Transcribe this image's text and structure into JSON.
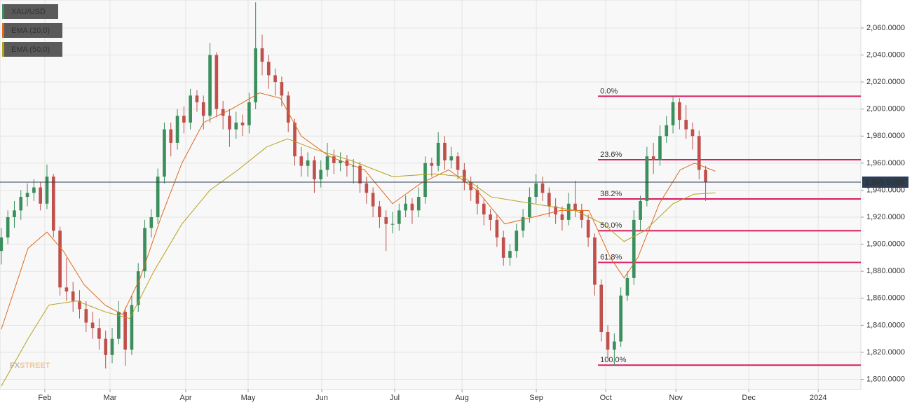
{
  "chart_data": {
    "type": "candlestick",
    "watermark": [
      "FX",
      "STREET"
    ],
    "xlim": [
      -0.2,
      131.8
    ],
    "xticks": [
      {
        "value": 6.67,
        "label": "Feb"
      },
      {
        "value": 16.67,
        "label": "Mar"
      },
      {
        "value": 28.28,
        "label": "Apr"
      },
      {
        "value": 37.85,
        "label": "May"
      },
      {
        "value": 49.14,
        "label": "Jun"
      },
      {
        "value": 60.32,
        "label": "Jul"
      },
      {
        "value": 70.65,
        "label": "Aug"
      },
      {
        "value": 82.04,
        "label": "Sep"
      },
      {
        "value": 92.69,
        "label": "Oct"
      },
      {
        "value": 103.44,
        "label": "Nov"
      },
      {
        "value": 114.62,
        "label": "Dec"
      },
      {
        "value": 125.27,
        "label": "2024"
      }
    ],
    "ylim": [
      1792.5,
      2080.7
    ],
    "yticks": [
      {
        "value": 1800,
        "label": "1,800.0000"
      },
      {
        "value": 1820,
        "label": "1,820.0000"
      },
      {
        "value": 1840,
        "label": "1,840.0000"
      },
      {
        "value": 1860,
        "label": "1,860.0000"
      },
      {
        "value": 1880,
        "label": "1,880.0000"
      },
      {
        "value": 1900,
        "label": "1,900.0000"
      },
      {
        "value": 1920,
        "label": "1,920.0000"
      },
      {
        "value": 1940,
        "label": "1,940.0000"
      },
      {
        "value": 1960,
        "label": "1,960.0000"
      },
      {
        "value": 1980,
        "label": "1,980.0000"
      },
      {
        "value": 2000,
        "label": "2,000.0000"
      },
      {
        "value": 2020,
        "label": "2,020.0000"
      },
      {
        "value": 2040,
        "label": "2,040.0000"
      },
      {
        "value": 2060,
        "label": "2,060.0000"
      }
    ],
    "grid": true,
    "last_price": {
      "value": 1945.93,
      "label": "1,945.9300"
    },
    "fib_start": 91.5,
    "fib_color": "#d81b60",
    "fib_levels": [
      {
        "value": 2009.5,
        "label": "0.0%"
      },
      {
        "value": 1962.5,
        "label": "23.6%"
      },
      {
        "value": 1933.5,
        "label": "38.2%"
      },
      {
        "value": 1910,
        "label": "50.0%"
      },
      {
        "value": 1886.5,
        "label": "61.8%"
      },
      {
        "value": 1810.5,
        "label": "100.0%"
      }
    ],
    "series": [
      {
        "name": "XAU/USD",
        "color": "#3a8f5c",
        "down_color": "#c0504d",
        "x": [
          0,
          1,
          2,
          3,
          4,
          5,
          6,
          7,
          8,
          9,
          10,
          11,
          12,
          13,
          14,
          15,
          16,
          17,
          18,
          19,
          20,
          21,
          22,
          23,
          24,
          25,
          26,
          27,
          28,
          29,
          30,
          31,
          32,
          33,
          34,
          35,
          36,
          37,
          38,
          39,
          40,
          41,
          42,
          43,
          44,
          45,
          46,
          47,
          48,
          49,
          50,
          51,
          52,
          53,
          54,
          55,
          56,
          57,
          58,
          59,
          60,
          61,
          62,
          63,
          64,
          65,
          66,
          67,
          68,
          69,
          70,
          71,
          72,
          73,
          74,
          75,
          76,
          77,
          78,
          79,
          80,
          81,
          82,
          83,
          84,
          85,
          86,
          87,
          88,
          89,
          90,
          91,
          92,
          93,
          94,
          95,
          96,
          97,
          98,
          99,
          100,
          101,
          102,
          103,
          104,
          105,
          106,
          107,
          108
        ],
        "ohlc": [
          [
            1895,
            1912,
            1885,
            1905
          ],
          [
            1905,
            1925,
            1900,
            1920
          ],
          [
            1920,
            1932,
            1912,
            1925
          ],
          [
            1925,
            1940,
            1918,
            1935
          ],
          [
            1935,
            1945,
            1928,
            1938
          ],
          [
            1938,
            1948,
            1932,
            1942
          ],
          [
            1942,
            1946,
            1925,
            1930
          ],
          [
            1930,
            1959,
            1926,
            1950
          ],
          [
            1950,
            1952,
            1905,
            1910
          ],
          [
            1910,
            1913,
            1862,
            1868
          ],
          [
            1868,
            1890,
            1858,
            1865
          ],
          [
            1865,
            1872,
            1850,
            1858
          ],
          [
            1858,
            1866,
            1845,
            1852
          ],
          [
            1852,
            1858,
            1835,
            1842
          ],
          [
            1842,
            1850,
            1830,
            1838
          ],
          [
            1838,
            1845,
            1822,
            1830
          ],
          [
            1830,
            1836,
            1808,
            1818
          ],
          [
            1818,
            1838,
            1812,
            1830
          ],
          [
            1830,
            1858,
            1826,
            1850
          ],
          [
            1850,
            1853,
            1810,
            1822
          ],
          [
            1822,
            1862,
            1818,
            1855
          ],
          [
            1855,
            1886,
            1850,
            1880
          ],
          [
            1880,
            1918,
            1875,
            1912
          ],
          [
            1912,
            1926,
            1905,
            1920
          ],
          [
            1920,
            1956,
            1915,
            1950
          ],
          [
            1950,
            1990,
            1945,
            1985
          ],
          [
            1985,
            1990,
            1965,
            1975
          ],
          [
            1975,
            2000,
            1970,
            1995
          ],
          [
            1995,
            2002,
            1982,
            1990
          ],
          [
            1990,
            2015,
            1985,
            2010
          ],
          [
            2010,
            2014,
            1998,
            2005
          ],
          [
            2005,
            2010,
            1985,
            1995
          ],
          [
            1995,
            2049,
            1990,
            2040
          ],
          [
            2040,
            2042,
            1994,
            2000
          ],
          [
            2000,
            2006,
            1985,
            1995
          ],
          [
            1995,
            2000,
            1972,
            1985
          ],
          [
            1985,
            1998,
            1978,
            1990
          ],
          [
            1990,
            1996,
            1980,
            1988
          ],
          [
            1988,
            2012,
            1982,
            2005
          ],
          [
            2005,
            2079,
            2000,
            2045
          ],
          [
            2045,
            2055,
            2025,
            2035
          ],
          [
            2035,
            2040,
            2015,
            2025
          ],
          [
            2025,
            2030,
            2010,
            2020
          ],
          [
            2020,
            2024,
            2002,
            2010
          ],
          [
            2010,
            2013,
            1983,
            1990
          ],
          [
            1990,
            1993,
            1958,
            1965
          ],
          [
            1965,
            1972,
            1950,
            1958
          ],
          [
            1958,
            1968,
            1950,
            1962
          ],
          [
            1962,
            1965,
            1938,
            1948
          ],
          [
            1948,
            1962,
            1942,
            1955
          ],
          [
            1955,
            1975,
            1950,
            1965
          ],
          [
            1965,
            1970,
            1952,
            1960
          ],
          [
            1960,
            1968,
            1954,
            1962
          ],
          [
            1962,
            1966,
            1950,
            1958
          ],
          [
            1958,
            1963,
            1945,
            1958
          ],
          [
            1958,
            1961,
            1938,
            1945
          ],
          [
            1945,
            1950,
            1930,
            1938
          ],
          [
            1938,
            1942,
            1920,
            1928
          ],
          [
            1928,
            1932,
            1912,
            1920
          ],
          [
            1920,
            1925,
            1895,
            1915
          ],
          [
            1915,
            1924,
            1908,
            1915
          ],
          [
            1915,
            1930,
            1910,
            1925
          ],
          [
            1925,
            1936,
            1920,
            1930
          ],
          [
            1930,
            1934,
            1915,
            1925
          ],
          [
            1925,
            1942,
            1920,
            1935
          ],
          [
            1935,
            1965,
            1930,
            1960
          ],
          [
            1960,
            1964,
            1950,
            1958
          ],
          [
            1958,
            1983,
            1954,
            1975
          ],
          [
            1975,
            1980,
            1955,
            1962
          ],
          [
            1962,
            1972,
            1956,
            1965
          ],
          [
            1965,
            1968,
            1948,
            1955
          ],
          [
            1955,
            1960,
            1940,
            1946
          ],
          [
            1946,
            1950,
            1932,
            1940
          ],
          [
            1940,
            1944,
            1922,
            1930
          ],
          [
            1930,
            1934,
            1914,
            1922
          ],
          [
            1922,
            1926,
            1910,
            1918
          ],
          [
            1918,
            1922,
            1898,
            1905
          ],
          [
            1905,
            1910,
            1884,
            1890
          ],
          [
            1890,
            1900,
            1884,
            1895
          ],
          [
            1895,
            1915,
            1890,
            1910
          ],
          [
            1910,
            1926,
            1905,
            1920
          ],
          [
            1920,
            1942,
            1916,
            1935
          ],
          [
            1935,
            1952,
            1930,
            1945
          ],
          [
            1945,
            1950,
            1932,
            1938
          ],
          [
            1938,
            1942,
            1920,
            1928
          ],
          [
            1928,
            1934,
            1915,
            1922
          ],
          [
            1922,
            1928,
            1910,
            1918
          ],
          [
            1918,
            1938,
            1914,
            1930
          ],
          [
            1930,
            1947,
            1920,
            1925
          ],
          [
            1925,
            1930,
            1912,
            1918
          ],
          [
            1918,
            1922,
            1898,
            1905
          ],
          [
            1905,
            1908,
            1862,
            1870
          ],
          [
            1870,
            1874,
            1828,
            1835
          ],
          [
            1835,
            1840,
            1816,
            1822
          ],
          [
            1822,
            1834,
            1810,
            1828
          ],
          [
            1828,
            1868,
            1824,
            1862
          ],
          [
            1862,
            1880,
            1858,
            1875
          ],
          [
            1875,
            1925,
            1870,
            1918
          ],
          [
            1918,
            1936,
            1910,
            1932
          ],
          [
            1932,
            1972,
            1928,
            1965
          ],
          [
            1965,
            1975,
            1952,
            1962
          ],
          [
            1962,
            1988,
            1958,
            1980
          ],
          [
            1980,
            1995,
            1975,
            1988
          ],
          [
            1988,
            2009.5,
            1982,
            2005
          ],
          [
            2005,
            2008,
            1985,
            1992
          ],
          [
            1992,
            2003,
            1978,
            1985
          ],
          [
            1985,
            1990,
            1970,
            1980
          ],
          [
            1980,
            1984,
            1948,
            1955
          ],
          [
            1955,
            1958,
            1932,
            1945.93
          ]
        ]
      },
      {
        "name": "EMA (20,0)",
        "color": "#e06a1a",
        "x": [
          0,
          4.1,
          7,
          9.5,
          12.7,
          15.9,
          18.6,
          21.3,
          24.5,
          27.7,
          31,
          35.3,
          39.6,
          42.8,
          46,
          50.3,
          55.7,
          60,
          64.3,
          68.6,
          72.9,
          77.2,
          81.5,
          85.8,
          90.1,
          93.4,
          95.5,
          97.6,
          100.9,
          104.1,
          106.3,
          109.5
        ],
        "values": [
          1837,
          1897,
          1909,
          1895,
          1870,
          1855,
          1848,
          1875,
          1920,
          1960,
          1990,
          2000,
          2012,
          2008,
          1980,
          1965,
          1955,
          1930,
          1945,
          1955,
          1940,
          1915,
          1920,
          1925,
          1925,
          1890,
          1875,
          1890,
          1930,
          1955,
          1960,
          1954
        ]
      },
      {
        "name": "EMA (50,0)",
        "color": "#b5a01c",
        "x": [
          0,
          4.1,
          7.3,
          11.6,
          15.9,
          19.7,
          23.4,
          27.7,
          32,
          36.3,
          40.7,
          43.9,
          48.2,
          53.6,
          60,
          66.5,
          70.8,
          75.1,
          81.5,
          88,
          92.3,
          95.5,
          98.7,
          103,
          106.2,
          109.5
        ],
        "values": [
          1795,
          1830,
          1855,
          1858,
          1850,
          1845,
          1880,
          1915,
          1940,
          1955,
          1972,
          1978,
          1970,
          1962,
          1950,
          1952,
          1950,
          1935,
          1930,
          1925,
          1915,
          1902,
          1910,
          1930,
          1937,
          1938
        ]
      }
    ]
  }
}
